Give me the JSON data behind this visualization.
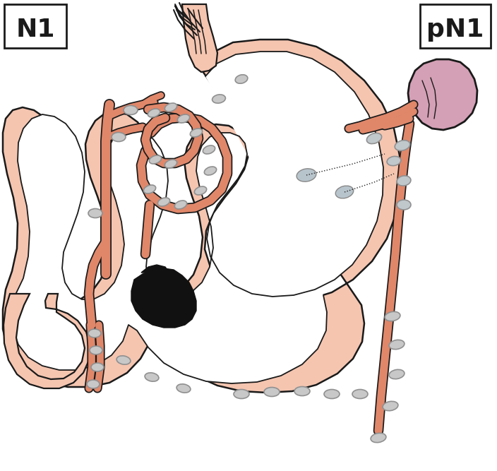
{
  "title_left": "N1",
  "title_right": "pN1",
  "stomach_fill": "#F5C5B0",
  "stomach_edge": "#1a1a1a",
  "vessel_fill": "#E0876A",
  "vessel_edge": "#1a1a1a",
  "ln_fill": "#C8C8C8",
  "ln_edge": "#909090",
  "ln_active_fill": "#C0C8CC",
  "spleen_fill": "#D4A0B5",
  "spleen_edge": "#1a1a1a",
  "tumor_fill": "#111111",
  "bg": "#ffffff",
  "text_color": "#1a1a1a",
  "dot_color": "#222222"
}
